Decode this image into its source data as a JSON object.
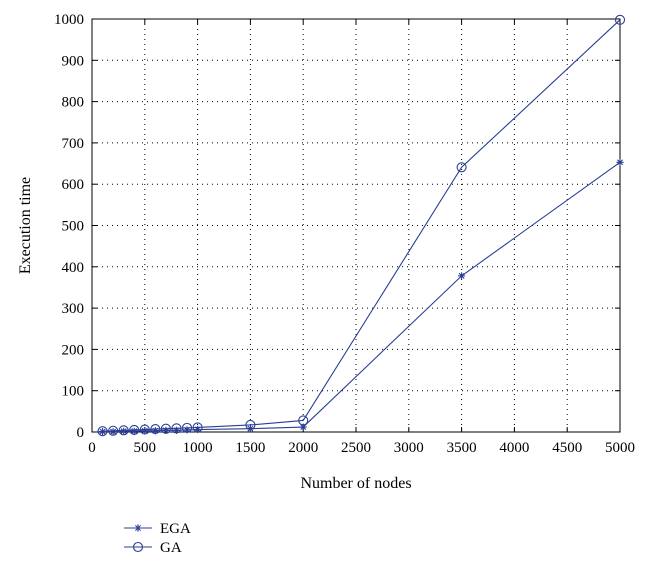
{
  "chart_data": {
    "type": "line",
    "title": "",
    "xlabel": "Number of nodes",
    "ylabel": "Execution time",
    "xlim": [
      0,
      5000
    ],
    "ylim": [
      0,
      1000
    ],
    "xticks": [
      0,
      500,
      1000,
      1500,
      2000,
      2500,
      3000,
      3500,
      4000,
      4500,
      5000
    ],
    "yticks": [
      0,
      100,
      200,
      300,
      400,
      500,
      600,
      700,
      800,
      900,
      1000
    ],
    "grid": true,
    "legend_position": "bottom-left",
    "series": [
      {
        "name": "EGA",
        "marker": "star",
        "color": "#2a3f96",
        "points": [
          [
            100,
            1
          ],
          [
            200,
            1
          ],
          [
            300,
            2
          ],
          [
            400,
            2
          ],
          [
            500,
            3
          ],
          [
            600,
            3
          ],
          [
            700,
            4
          ],
          [
            800,
            4
          ],
          [
            900,
            5
          ],
          [
            1000,
            6
          ],
          [
            1500,
            8
          ],
          [
            2000,
            12
          ],
          [
            3500,
            378
          ],
          [
            5000,
            653
          ]
        ]
      },
      {
        "name": "GA",
        "marker": "circle",
        "color": "#2a3f96",
        "points": [
          [
            100,
            2
          ],
          [
            200,
            3
          ],
          [
            300,
            4
          ],
          [
            400,
            5
          ],
          [
            500,
            6
          ],
          [
            600,
            7
          ],
          [
            700,
            8
          ],
          [
            800,
            9
          ],
          [
            900,
            10
          ],
          [
            1000,
            11
          ],
          [
            1500,
            17
          ],
          [
            2000,
            28
          ],
          [
            3500,
            641
          ],
          [
            5000,
            998
          ]
        ]
      }
    ]
  }
}
